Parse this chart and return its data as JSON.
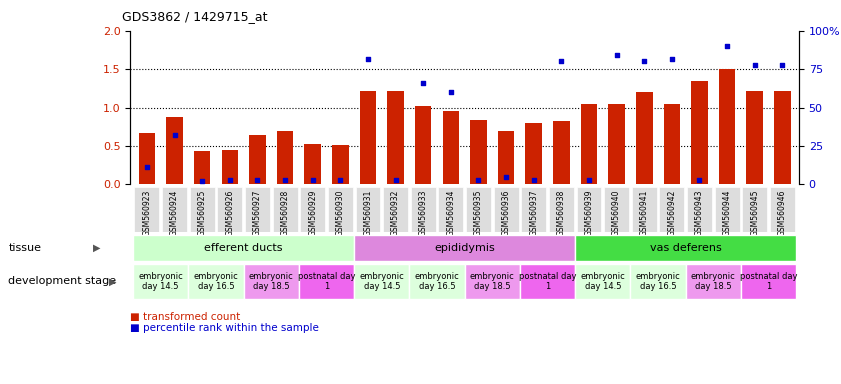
{
  "title": "GDS3862 / 1429715_at",
  "samples": [
    "GSM560923",
    "GSM560924",
    "GSM560925",
    "GSM560926",
    "GSM560927",
    "GSM560928",
    "GSM560929",
    "GSM560930",
    "GSM560931",
    "GSM560932",
    "GSM560933",
    "GSM560934",
    "GSM560935",
    "GSM560936",
    "GSM560937",
    "GSM560938",
    "GSM560939",
    "GSM560940",
    "GSM560941",
    "GSM560942",
    "GSM560943",
    "GSM560944",
    "GSM560945",
    "GSM560946"
  ],
  "transformed_count": [
    0.67,
    0.88,
    0.44,
    0.45,
    0.64,
    0.7,
    0.52,
    0.51,
    1.22,
    1.22,
    1.02,
    0.95,
    0.84,
    0.7,
    0.8,
    0.82,
    1.05,
    1.05,
    1.2,
    1.05,
    1.35,
    1.5,
    1.22,
    1.22
  ],
  "percentile_rank_scaled": [
    0.22,
    0.64,
    0.04,
    0.05,
    0.05,
    0.06,
    0.05,
    0.05,
    1.63,
    0.05,
    1.32,
    1.2,
    0.05,
    0.1,
    0.05,
    1.6,
    0.05,
    1.68,
    1.6,
    1.63,
    0.05,
    1.8,
    1.55,
    1.55
  ],
  "ylim_left": [
    0,
    2
  ],
  "ylim_right": [
    0,
    100
  ],
  "yticks_left": [
    0,
    0.5,
    1.0,
    1.5,
    2.0
  ],
  "yticks_right": [
    0,
    25,
    50,
    75,
    100
  ],
  "bar_color": "#cc2200",
  "dot_color": "#0000cc",
  "tissue_groups": [
    {
      "label": "efferent ducts",
      "start": 0,
      "end": 7,
      "color": "#ccffcc"
    },
    {
      "label": "epididymis",
      "start": 8,
      "end": 15,
      "color": "#dd88dd"
    },
    {
      "label": "vas deferens",
      "start": 16,
      "end": 23,
      "color": "#44dd44"
    }
  ],
  "dev_stage_groups": [
    {
      "label": "embryonic\nday 14.5",
      "start": 0,
      "end": 1,
      "color": "#ddffdd"
    },
    {
      "label": "embryonic\nday 16.5",
      "start": 2,
      "end": 3,
      "color": "#ddffdd"
    },
    {
      "label": "embryonic\nday 18.5",
      "start": 4,
      "end": 5,
      "color": "#ee99ee"
    },
    {
      "label": "postnatal day\n1",
      "start": 6,
      "end": 7,
      "color": "#ee66ee"
    },
    {
      "label": "embryonic\nday 14.5",
      "start": 8,
      "end": 9,
      "color": "#ddffdd"
    },
    {
      "label": "embryonic\nday 16.5",
      "start": 10,
      "end": 11,
      "color": "#ddffdd"
    },
    {
      "label": "embryonic\nday 18.5",
      "start": 12,
      "end": 13,
      "color": "#ee99ee"
    },
    {
      "label": "postnatal day\n1",
      "start": 14,
      "end": 15,
      "color": "#ee66ee"
    },
    {
      "label": "embryonic\nday 14.5",
      "start": 16,
      "end": 17,
      "color": "#ddffdd"
    },
    {
      "label": "embryonic\nday 16.5",
      "start": 18,
      "end": 19,
      "color": "#ddffdd"
    },
    {
      "label": "embryonic\nday 18.5",
      "start": 20,
      "end": 21,
      "color": "#ee99ee"
    },
    {
      "label": "postnatal day\n1",
      "start": 22,
      "end": 23,
      "color": "#ee66ee"
    }
  ],
  "legend_bar_label": "transformed count",
  "legend_dot_label": "percentile rank within the sample",
  "tissue_label": "tissue",
  "dev_stage_label": "development stage",
  "dotted_lines": [
    0.5,
    1.0,
    1.5
  ],
  "xticklabel_bg": "#dddddd"
}
